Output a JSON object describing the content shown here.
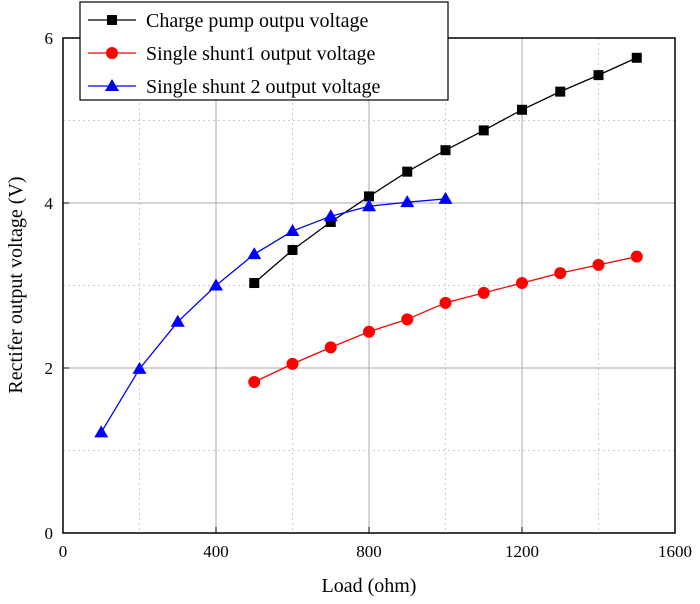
{
  "chart_data": {
    "type": "line",
    "xlabel": "Load (ohm)",
    "ylabel": "Rectifer output voltage (V)",
    "xlim": [
      0,
      1600
    ],
    "ylim": [
      0,
      6
    ],
    "xticks": [
      "0",
      "400",
      "800",
      "1200",
      "1600"
    ],
    "yticks": [
      "0",
      "2",
      "4",
      "6"
    ],
    "grid": true,
    "legend_position": "top-left",
    "series": [
      {
        "name": "Charge pump outpu voltage",
        "color": "#000000",
        "marker": "square",
        "x": [
          500,
          600,
          700,
          800,
          900,
          1000,
          1100,
          1200,
          1300,
          1400,
          1500
        ],
        "y": [
          3.03,
          3.43,
          3.77,
          4.08,
          4.38,
          4.64,
          4.88,
          5.13,
          5.35,
          5.55,
          5.76
        ]
      },
      {
        "name": "Single shunt1 output voltage",
        "color": "#ff0000",
        "marker": "circle",
        "x": [
          500,
          600,
          700,
          800,
          900,
          1000,
          1100,
          1200,
          1300,
          1400,
          1500
        ],
        "y": [
          1.83,
          2.05,
          2.25,
          2.44,
          2.59,
          2.79,
          2.91,
          3.03,
          3.15,
          3.25,
          3.35
        ]
      },
      {
        "name": "Single shunt 2 output voltage",
        "color": "#0000ff",
        "marker": "triangle",
        "x": [
          100,
          200,
          300,
          400,
          500,
          600,
          700,
          800,
          900,
          1000
        ],
        "y": [
          1.22,
          1.99,
          2.56,
          3.0,
          3.38,
          3.66,
          3.84,
          3.96,
          4.01,
          4.05
        ]
      }
    ]
  }
}
